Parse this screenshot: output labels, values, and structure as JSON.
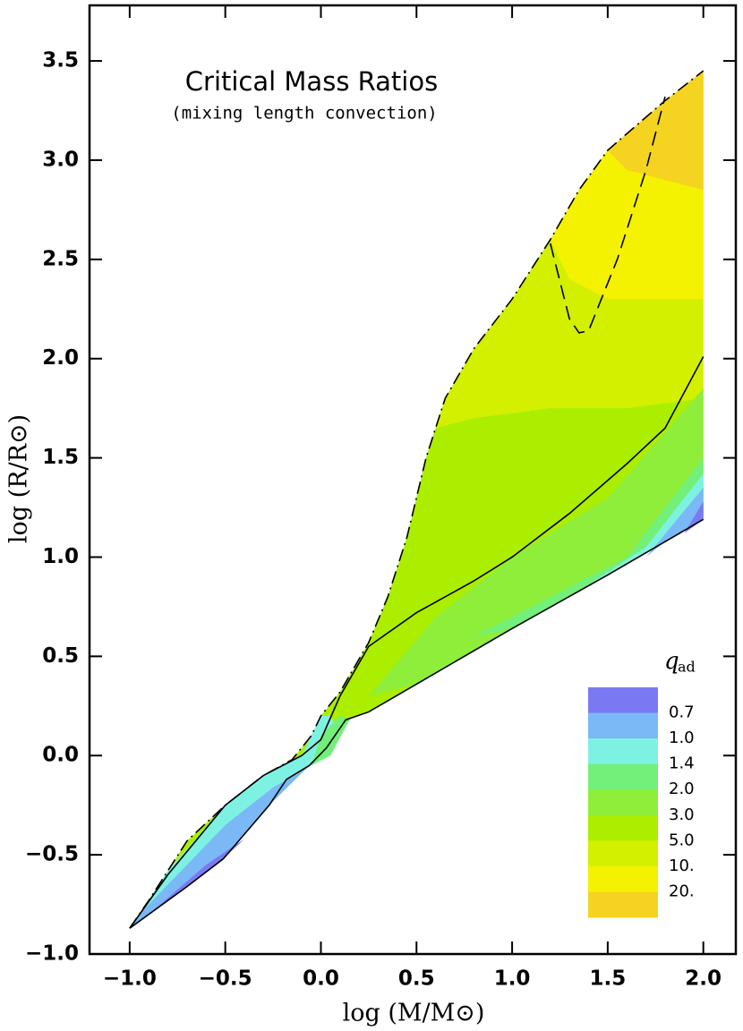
{
  "chart_data": {
    "type": "contour",
    "title": "Critical Mass Ratios",
    "subtitle": "(mixing length convection)",
    "x_label": "log (M/M⊙)",
    "y_label": "log (R/R⊙)",
    "xlim": [
      -1.21,
      2.17
    ],
    "ylim": [
      -1.0,
      3.78
    ],
    "xticks": [
      {
        "value": -1,
        "label": "−1.0"
      },
      {
        "value": -0.5,
        "label": "−0.5"
      },
      {
        "value": 0,
        "label": "0.0"
      },
      0.5,
      {
        "value": 1,
        "label": "1.0"
      },
      1.5,
      {
        "value": 2,
        "label": "2.0"
      }
    ],
    "yticks": [
      {
        "value": -1,
        "label": "−1.0"
      },
      {
        "value": -0.5,
        "label": "−0.5"
      },
      {
        "value": 0,
        "label": "0.0"
      },
      0.5,
      {
        "value": 1,
        "label": "1.0"
      },
      1.5,
      {
        "value": 2,
        "label": "2.0"
      },
      2.5,
      {
        "value": 3,
        "label": "3.0"
      },
      3.5
    ],
    "colorbar": {
      "label": "q",
      "label_sub": "ad",
      "colors": [
        "#7b79f2",
        "#7ab9f6",
        "#7ef2e2",
        "#72f07a",
        "#8eee3a",
        "#acee00",
        "#d2f000",
        "#f4f200",
        "#f4d420"
      ],
      "levels": [
        0.7,
        {
          "value": 1,
          "label": "1.0"
        },
        1.4,
        {
          "value": 2,
          "label": "2.0"
        },
        {
          "value": 3,
          "label": "3.0"
        },
        {
          "value": 5,
          "label": "5.0"
        },
        {
          "value": 10,
          "label": "10."
        },
        {
          "value": 20,
          "label": "20."
        }
      ]
    },
    "envelope_band": 5,
    "lines": [
      {
        "style": "dash-dot",
        "x": [
          -1.0,
          -0.9,
          -0.8,
          -0.7,
          -0.5,
          -0.3,
          -0.15,
          -0.05,
          0.0,
          0.1,
          0.25,
          0.35,
          0.45,
          0.55,
          0.65,
          0.8,
          1.0,
          1.2,
          1.35,
          1.5,
          1.8,
          2.0
        ],
        "y": [
          -0.87,
          -0.73,
          -0.58,
          -0.43,
          -0.25,
          -0.1,
          -0.02,
          0.1,
          0.2,
          0.32,
          0.57,
          0.8,
          1.1,
          1.5,
          1.8,
          2.05,
          2.3,
          2.6,
          2.85,
          3.05,
          3.3,
          3.45
        ]
      },
      {
        "style": "solid",
        "x": [
          -1.0,
          -0.7,
          -0.51,
          -0.27,
          -0.18,
          -0.06,
          0.03,
          0.13,
          0.25,
          0.5,
          1.0,
          1.5,
          2.0
        ],
        "y": [
          -0.87,
          -0.66,
          -0.52,
          -0.25,
          -0.12,
          -0.05,
          0.04,
          0.18,
          0.22,
          0.36,
          0.64,
          0.91,
          1.19
        ]
      },
      {
        "style": "solid",
        "x": [
          -1.0,
          -0.8,
          -0.5,
          -0.3,
          -0.1,
          0.0,
          0.1,
          0.25,
          0.5,
          0.8,
          1.0,
          1.3,
          1.6,
          1.8,
          2.0
        ],
        "y": [
          -0.87,
          -0.6,
          -0.25,
          -0.1,
          0.0,
          0.08,
          0.3,
          0.55,
          0.72,
          0.88,
          1.0,
          1.22,
          1.47,
          1.65,
          2.01
        ]
      },
      {
        "style": "dashed",
        "x": [
          1.2,
          1.3,
          1.35,
          1.4,
          1.55,
          1.7,
          1.8
        ],
        "y": [
          2.58,
          2.2,
          2.13,
          2.14,
          2.5,
          2.95,
          3.32
        ]
      }
    ],
    "regions": [
      {
        "band": 6,
        "x": [
          0.6,
          0.8,
          1.2,
          1.6,
          2.0,
          2.0,
          1.5,
          1.0,
          0.8,
          0.65
        ],
        "y": [
          1.65,
          1.7,
          1.75,
          1.75,
          1.8,
          3.45,
          3.05,
          2.3,
          2.05,
          1.8
        ]
      },
      {
        "band": 7,
        "x": [
          1.2,
          1.3,
          1.5,
          2.0,
          2.0,
          1.8,
          1.5,
          1.35
        ],
        "y": [
          2.6,
          2.4,
          2.3,
          2.3,
          3.45,
          3.3,
          3.05,
          2.85
        ]
      },
      {
        "band": 8,
        "x": [
          1.5,
          1.6,
          2.0,
          2.0,
          1.8
        ],
        "y": [
          3.05,
          2.95,
          2.85,
          3.45,
          3.3
        ]
      },
      {
        "band": 4,
        "x": [
          0.25,
          0.6,
          1.0,
          1.5,
          2.0,
          2.0,
          1.0,
          0.5
        ],
        "y": [
          0.3,
          0.7,
          1.0,
          1.3,
          1.85,
          1.19,
          0.64,
          0.36
        ]
      },
      {
        "band": 3,
        "x": [
          0.8,
          1.2,
          1.6,
          2.0,
          2.0,
          1.5,
          1.0
        ],
        "y": [
          0.6,
          0.8,
          1.0,
          1.5,
          1.19,
          0.91,
          0.64
        ]
      },
      {
        "band": 2,
        "x": [
          1.3,
          1.7,
          2.0,
          2.0,
          1.5
        ],
        "y": [
          0.8,
          1.05,
          1.42,
          1.19,
          0.91
        ]
      },
      {
        "band": 1,
        "x": [
          1.7,
          2.0,
          2.0,
          1.8
        ],
        "y": [
          1.0,
          1.35,
          1.19,
          1.08
        ]
      },
      {
        "band": 0,
        "x": [
          1.9,
          2.0,
          2.0
        ],
        "y": [
          1.12,
          1.28,
          1.19
        ]
      },
      {
        "band": 2,
        "x": [
          -1.0,
          -0.8,
          -0.5,
          -0.3,
          -0.1,
          0.0,
          0.05,
          0.1,
          0.13,
          0.03,
          -0.06,
          -0.27,
          -0.51
        ],
        "y": [
          -0.87,
          -0.58,
          -0.25,
          -0.1,
          0.0,
          0.2,
          0.2,
          0.1,
          0.18,
          0.04,
          -0.05,
          -0.25,
          -0.52
        ]
      },
      {
        "band": 1,
        "x": [
          -0.95,
          -0.5,
          -0.25,
          -0.1,
          -0.06,
          -0.27,
          -0.51,
          -1.0
        ],
        "y": [
          -0.8,
          -0.35,
          -0.16,
          -0.08,
          -0.05,
          -0.25,
          -0.52,
          -0.87
        ]
      },
      {
        "band": 0,
        "x": [
          -0.9,
          -0.6,
          -0.4,
          -0.51,
          -1.0
        ],
        "y": [
          -0.8,
          -0.55,
          -0.42,
          -0.52,
          -0.87
        ]
      },
      {
        "band": 3,
        "x": [
          -0.05,
          0.0,
          0.1,
          0.15,
          0.05
        ],
        "y": [
          -0.05,
          0.1,
          0.2,
          0.18,
          0.0
        ]
      }
    ]
  }
}
